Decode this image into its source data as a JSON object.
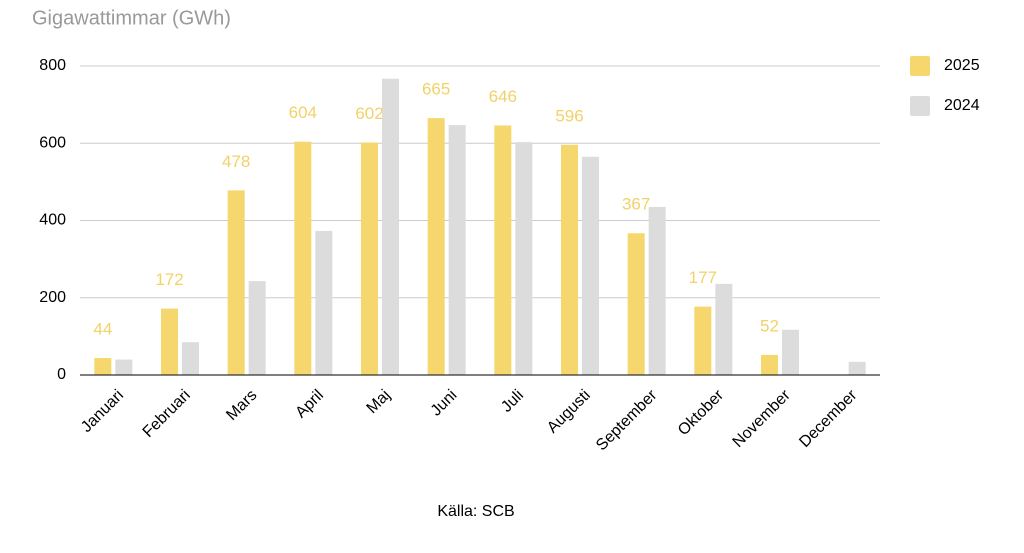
{
  "chart_data": {
    "type": "bar",
    "title": "Gigawattimmar (GWh)",
    "source": "Källa: SCB",
    "categories": [
      "Januari",
      "Februari",
      "Mars",
      "April",
      "Maj",
      "Juni",
      "Juli",
      "Augusti",
      "September",
      "Oktober",
      "November",
      "December"
    ],
    "series": [
      {
        "name": "2025",
        "color": "#f5d76e",
        "label_color": "#f2d268",
        "values": [
          44,
          172,
          478,
          604,
          602,
          665,
          646,
          596,
          367,
          177,
          52,
          null
        ]
      },
      {
        "name": "2024",
        "color": "#dcdcdc",
        "values": [
          40,
          85,
          243,
          373,
          767,
          647,
          603,
          565,
          435,
          236,
          117,
          34
        ]
      }
    ],
    "ylim": [
      0,
      800
    ],
    "yticks": [
      0,
      200,
      400,
      600,
      800
    ],
    "grid": true,
    "legend": "right"
  }
}
